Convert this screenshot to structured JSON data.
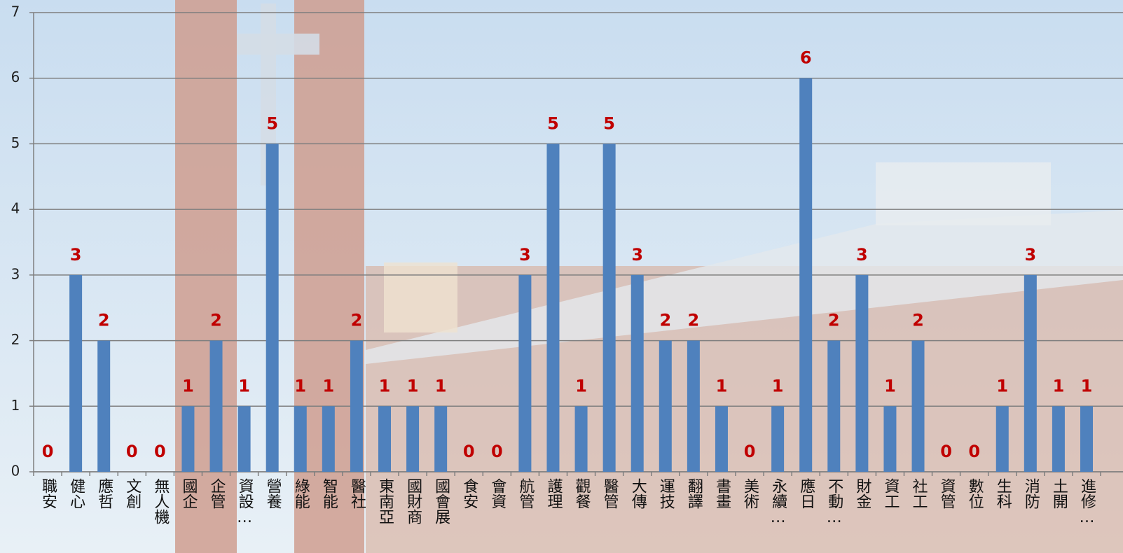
{
  "chart_data": {
    "type": "bar",
    "categories": [
      "職安",
      "健心",
      "應哲",
      "文創",
      "無人機",
      "國企",
      "企管",
      "資設…",
      "營養",
      "綠能",
      "智能",
      "醫社",
      "東南亞",
      "國財商",
      "國會展",
      "食安",
      "會資",
      "航管",
      "護理",
      "觀餐",
      "醫管",
      "大傳",
      "運技",
      "翻譯",
      "書畫",
      "美術",
      "永續…",
      "應日",
      "不動…",
      "財金",
      "資工",
      "社工",
      "資管",
      "數位",
      "生科",
      "消防",
      "土開",
      "進修…"
    ],
    "values": [
      0,
      3,
      2,
      0,
      0,
      1,
      2,
      1,
      5,
      1,
      1,
      2,
      1,
      1,
      1,
      0,
      0,
      3,
      5,
      1,
      5,
      3,
      2,
      2,
      1,
      0,
      1,
      6,
      2,
      3,
      1,
      2,
      0,
      0,
      1,
      3,
      1,
      1
    ],
    "color": "#4f81bd",
    "label_color": "#c00000",
    "ylim": [
      0,
      7
    ],
    "yticks": [
      0,
      1,
      2,
      3,
      4,
      5,
      6,
      7
    ],
    "grid": true
  }
}
